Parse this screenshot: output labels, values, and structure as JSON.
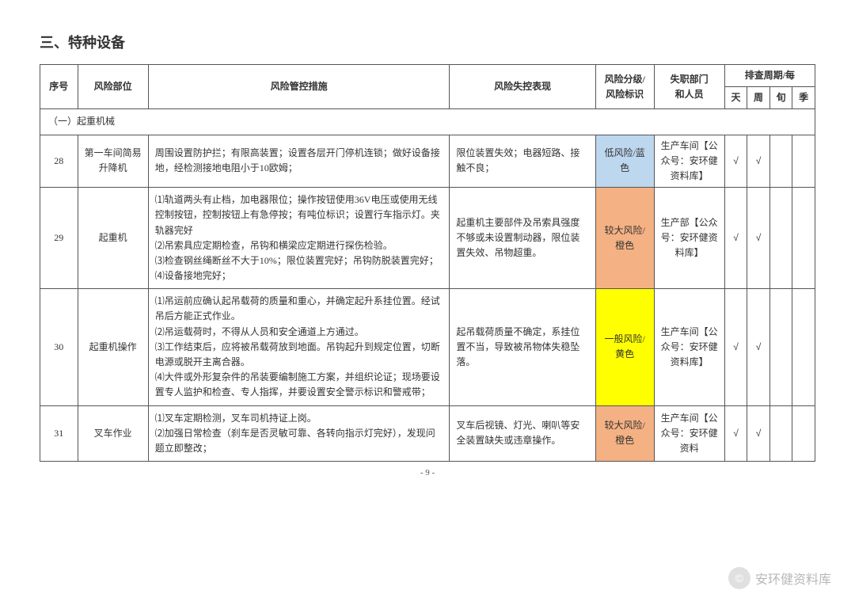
{
  "section_title": "三、特种设备",
  "headers": {
    "seq": "序号",
    "position": "风险部位",
    "measure": "风险管控措施",
    "failure": "风险失控表现",
    "level_line1": "风险分级/",
    "level_line2": "风险标识",
    "dept_line1": "失职部门",
    "dept_line2": "和人员",
    "period_title": "排查周期/每",
    "period_day": "天",
    "period_week": "周",
    "period_ten": "旬",
    "period_season": "季"
  },
  "subsection": "（一）起重机械",
  "rows": [
    {
      "seq": "28",
      "position": "第一车间简易升降机",
      "measure": "周围设置防护拦；有限高装置；设置各层开门停机连锁；做好设备接地，经检测接地电阻小于10欧姆；",
      "failure": "限位装置失效；电器短路、接触不良；",
      "level": "低风险/蓝色",
      "level_class": "risk-low",
      "dept": "生产车间【公众号：安环健资料库】",
      "check_day": "√",
      "check_week": "√",
      "check_ten": "",
      "check_season": ""
    },
    {
      "seq": "29",
      "position": "起重机",
      "measure": "⑴轨道两头有止档，加电器限位；操作按钮使用36V电压或使用无线控制按钮，控制按钮上有急停按；有吨位标识；设置行车指示灯。夹轨器完好\n⑵吊索具应定期检查，吊钩和横梁应定期进行探伤检验。\n⑶检查钢丝绳断丝不大于10%；限位装置完好；吊钩防脱装置完好；\n⑷设备接地完好；",
      "failure": "起重机主要部件及吊索具强度不够或未设置制动器，限位装置失效、吊物超重。",
      "level": "较大风险/橙色",
      "level_class": "risk-high",
      "dept": "生产部【公众号：安环健资料库】",
      "check_day": "√",
      "check_week": "√",
      "check_ten": "",
      "check_season": ""
    },
    {
      "seq": "30",
      "position": "起重机操作",
      "measure": "⑴吊运前应确认起吊载荷的质量和重心，并确定起升系挂位置。经试吊后方能正式作业。\n⑵吊运载荷时，不得从人员和安全通道上方通过。\n⑶工作结束后，应将被吊载荷放到地面。吊钩起升到规定位置，切断电源或脱开主离合器。\n⑷大件或外形复杂件的吊装要编制施工方案，并组织论证；现场要设置专人监护和检查、专人指挥，并要设置安全警示标识和警戒带；",
      "failure": "起吊载荷质量不确定，系挂位置不当，导致被吊物体失稳坠落。",
      "level": "一般风险/黄色",
      "level_class": "risk-med",
      "dept": "生产车间【公众号：安环健资料库】",
      "check_day": "√",
      "check_week": "√",
      "check_ten": "",
      "check_season": ""
    },
    {
      "seq": "31",
      "position": "叉车作业",
      "measure": "⑴叉车定期检测，叉车司机持证上岗。\n⑵加强日常检查（刹车是否灵敏可靠、各转向指示灯完好），发现问题立即整改；",
      "failure": "叉车后视镜、灯光、喇叭等安全装置缺失或违章操作。",
      "level": "较大风险/橙色",
      "level_class": "risk-high",
      "dept": "生产车间【公众号：安环健资料",
      "check_day": "√",
      "check_week": "√",
      "check_ten": "",
      "check_season": ""
    }
  ],
  "page_number": "- 9 -",
  "watermark_icon": "©",
  "watermark_text": "安环健资料库"
}
